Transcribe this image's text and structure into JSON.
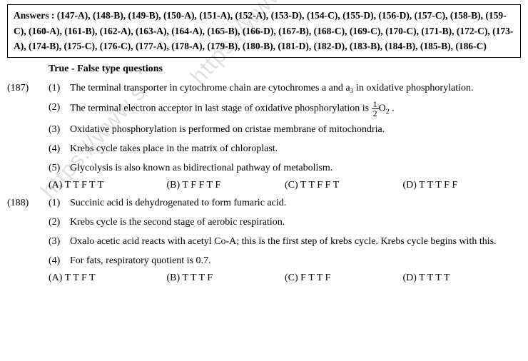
{
  "answers_label": "Answers :",
  "answers": [
    "(147-A)",
    "(148-B)",
    "(149-B)",
    "(150-A)",
    "(151-A)",
    "(152-A)",
    "(153-D)",
    "(154-C)",
    "(155-D)",
    "(156-D)",
    "(157-C)",
    "(158-B)",
    "(159-C)",
    "(160-A)",
    "(161-B)",
    "(162-A)",
    "(163-A)",
    "(164-A)",
    "(165-B)",
    "(166-D)",
    "(167-B)",
    "(168-C)",
    "(169-C)",
    "(170-C)",
    "(171-B)",
    "(172-C)",
    "(173-A)",
    "(174-B)",
    "(175-C)",
    "(176-C)",
    "(177-A)",
    "(178-A)",
    "(179-B)",
    "(180-B)",
    "(181-D)",
    "(182-D)",
    "(183-B)",
    "(184-B)",
    "(185-B)",
    "(186-C)"
  ],
  "section_title": "True - False type questions",
  "q187": {
    "num": "(187)",
    "s1": {
      "n": "(1)",
      "t": "The terminal transporter in cytochrome chain are cytochromes a and a₃ in oxidative phosphorylation."
    },
    "s2": {
      "n": "(2)",
      "t_pre": "The terminal electron acceptor in last stage of oxidative phosphorylation is ",
      "frac_num": "1",
      "frac_den": "2",
      "t_post": "O",
      "sub": "2",
      "tail": " ."
    },
    "s3": {
      "n": "(3)",
      "t": "Oxidative phosphorylation is performed on cristae membrane of mitochondria."
    },
    "s4": {
      "n": "(4)",
      "t": "Krebs cycle takes place in the matrix of chloroplast."
    },
    "s5": {
      "n": "(5)",
      "t": "Glycolysis is also known as bidirectional pathway of metabolism."
    },
    "opts": {
      "A": "(A) T T F T T",
      "B": "(B) T F F T F",
      "C": "(C) T T F F T",
      "D": "(D) T T T F F"
    }
  },
  "q188": {
    "num": "(188)",
    "s1": {
      "n": "(1)",
      "t": "Succinic acid is dehydrogenated to form fumaric acid."
    },
    "s2": {
      "n": "(2)",
      "t": "Krebs cycle is the second stage of aerobic respiration."
    },
    "s3": {
      "n": "(3)",
      "t": "Oxalo acetic acid reacts with acetyl Co-A; this is the first step of krebs cycle. Krebs cycle begins with this."
    },
    "s4": {
      "n": "(4)",
      "t": "For fats, respiratory quotient is 0.7."
    },
    "opts": {
      "A": "(A) T T F T",
      "B": "(B) T T T F",
      "C": "(C) F T T F",
      "D": "(D) T T T T"
    }
  },
  "watermark": "https://www.s"
}
